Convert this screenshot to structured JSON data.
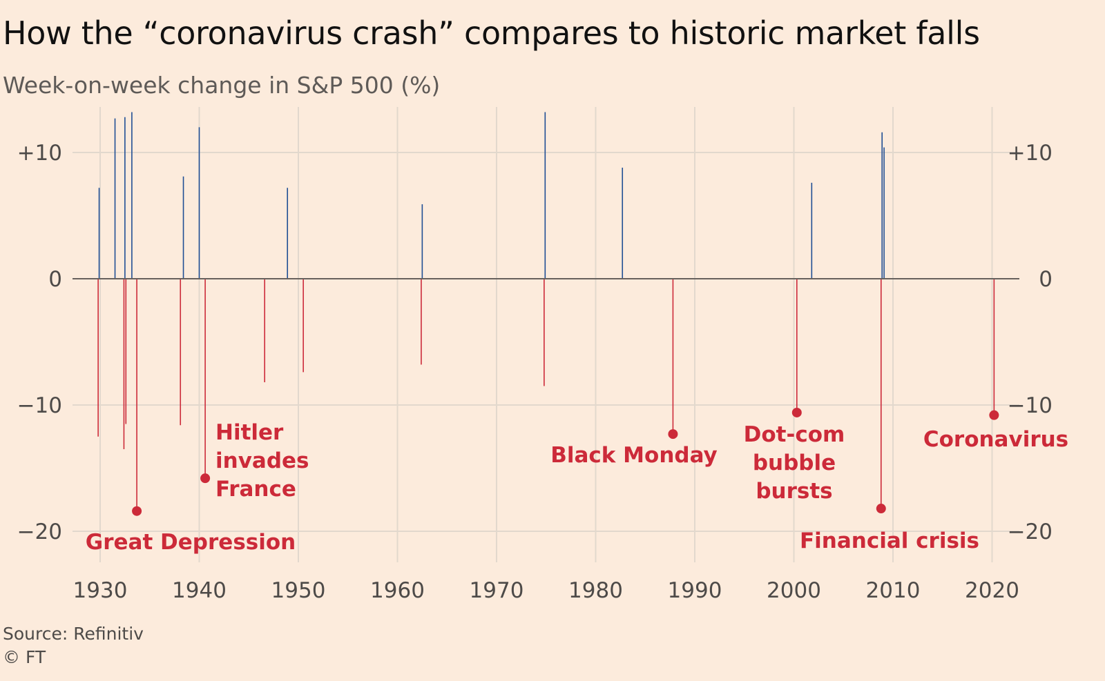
{
  "header": {
    "title": "How the “coronavirus crash” compares to historic market falls",
    "subtitle": "Week-on-week change in S&P 500 (%)"
  },
  "footer": {
    "source": "Source: Refinitiv",
    "credit": "© FT"
  },
  "colors": {
    "positive": "#1f4e94",
    "negative": "#cc2a39",
    "grid": "#e2d8cd",
    "axis": "#66605c",
    "background": "#fcebdc"
  },
  "chart_data": {
    "type": "bar",
    "title": "How the “coronavirus crash” compares to historic market falls",
    "subtitle": "Week-on-week change in S&P 500 (%)",
    "xlabel": "",
    "ylabel": "",
    "xlim": [
      1928,
      2020.5
    ],
    "ylim": [
      -21,
      14
    ],
    "grid": true,
    "x_ticks": [
      1930,
      1940,
      1950,
      1960,
      1970,
      1980,
      1990,
      2000,
      2010,
      2020
    ],
    "y_ticks": [
      {
        "value": 10,
        "label": "+10"
      },
      {
        "value": 0,
        "label": "0"
      },
      {
        "value": -10,
        "label": "−10"
      },
      {
        "value": -20,
        "label": "−20"
      }
    ],
    "series": [
      {
        "values": [
          [
            1929.8,
            -12.5
          ],
          [
            1929.9,
            7.2
          ],
          [
            1931.5,
            12.7
          ],
          [
            1932.4,
            -13.5
          ],
          [
            1932.5,
            12.8
          ],
          [
            1932.6,
            -11.5
          ],
          [
            1933.2,
            13.2
          ],
          [
            1933.7,
            -18.4
          ],
          [
            1938.4,
            8.1
          ],
          [
            1938.1,
            -11.6
          ],
          [
            1940.6,
            -15.8
          ],
          [
            1940.0,
            12.0
          ],
          [
            1946.6,
            -8.2
          ],
          [
            1948.9,
            7.2
          ],
          [
            1950.5,
            -7.4
          ],
          [
            1962.4,
            -6.8
          ],
          [
            1962.5,
            5.9
          ],
          [
            1974.8,
            -8.5
          ],
          [
            1974.9,
            13.2
          ],
          [
            1982.7,
            8.8
          ],
          [
            1987.8,
            -12.3
          ],
          [
            2000.3,
            -10.6
          ],
          [
            2001.8,
            7.6
          ],
          [
            2008.8,
            -18.2
          ],
          [
            2008.9,
            11.6
          ],
          [
            2009.1,
            10.4
          ],
          [
            2020.2,
            -10.8
          ]
        ]
      }
    ],
    "annotations": [
      {
        "label_lines": [
          "Great Depression"
        ],
        "x": 1933.7,
        "y": -18.4
      },
      {
        "label_lines": [
          "Hitler",
          "invades",
          "France"
        ],
        "x": 1940.6,
        "y": -15.8
      },
      {
        "label_lines": [
          "Black Monday"
        ],
        "x": 1987.8,
        "y": -12.3
      },
      {
        "label_lines": [
          "Dot-com",
          "bubble",
          "bursts"
        ],
        "x": 2000.3,
        "y": -10.6
      },
      {
        "label_lines": [
          "Financial crisis"
        ],
        "x": 2008.8,
        "y": -18.2
      },
      {
        "label_lines": [
          "Coronavirus"
        ],
        "x": 2020.2,
        "y": -10.8
      }
    ]
  }
}
